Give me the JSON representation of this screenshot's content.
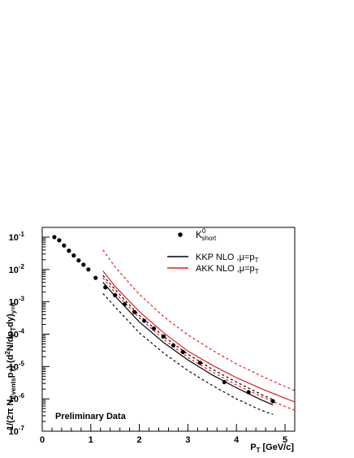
{
  "chart_data": {
    "type": "scatter",
    "title": "",
    "xlabel_main": "P",
    "xlabel_sub": "T",
    "xlabel_unit": " [GeV/c]",
    "ylabel_parts": {
      "a": "1/(2π N",
      "a_sub": "Events",
      "b": "p",
      "b_sub": "T",
      "c": ") (d",
      "c_sup": "2",
      "d": "N/dp",
      "d_sub": "T",
      "e": "dy)",
      "e_sub": "y=0"
    },
    "xlim": [
      0,
      5.2
    ],
    "ylim": [
      1e-07,
      0.2
    ],
    "yscale": "log",
    "x_ticks": [
      "0",
      "1",
      "2",
      "3",
      "4",
      "5"
    ],
    "y_ticks": [
      {
        "base": "10",
        "exp": "-7"
      },
      {
        "base": "10",
        "exp": "-6"
      },
      {
        "base": "10",
        "exp": "-5"
      },
      {
        "base": "10",
        "exp": "-4"
      },
      {
        "base": "10",
        "exp": "-3"
      },
      {
        "base": "10",
        "exp": "-2"
      },
      {
        "base": "10",
        "exp": "-1"
      }
    ],
    "legend": {
      "position": "top-right",
      "entries": [
        {
          "label": "K",
          "sup": "0",
          "sub": "short",
          "style": "marker",
          "color": "#000000"
        },
        {
          "label": "KKP NLO ,μ=p",
          "sub": "T",
          "style": "line",
          "color": "#000000"
        },
        {
          "label": "AKK NLO ,μ=p",
          "sub": "T",
          "style": "line",
          "color": "#e31a1c"
        }
      ]
    },
    "annotation": "Preliminary Data",
    "series": [
      {
        "name": "K0short",
        "kind": "points",
        "color": "#000000",
        "x": [
          0.25,
          0.35,
          0.45,
          0.55,
          0.65,
          0.75,
          0.85,
          0.95,
          1.1,
          1.3,
          1.5,
          1.7,
          1.9,
          2.1,
          2.3,
          2.5,
          2.7,
          2.9,
          3.25,
          3.75,
          4.25,
          4.75
        ],
        "y": [
          0.1,
          0.08,
          0.055,
          0.038,
          0.027,
          0.019,
          0.014,
          0.01,
          0.0055,
          0.0028,
          0.0016,
          0.00085,
          0.00048,
          0.00026,
          0.00015,
          8.5e-05,
          4.5e-05,
          2.8e-05,
          1.3e-05,
          3.3e-06,
          1.6e-06,
          8.5e-07
        ]
      },
      {
        "name": "KKP NLO",
        "kind": "line",
        "dash": "solid",
        "color": "#000000",
        "x": [
          1.25,
          1.5,
          2,
          2.5,
          3,
          3.5,
          4,
          4.5,
          4.75
        ],
        "y": [
          0.004,
          0.0015,
          0.00024,
          5.5e-05,
          1.6e-05,
          5.5e-06,
          2.2e-06,
          9.5e-07,
          6.5e-07
        ]
      },
      {
        "name": "KKP NLO (scale band upper)",
        "kind": "line",
        "dash": "dashed",
        "color": "#000000",
        "x": [
          1.25,
          1.5,
          2,
          2.5,
          3,
          3.5,
          4,
          4.5,
          4.75
        ],
        "y": [
          0.0065,
          0.0024,
          0.00038,
          8.5e-05,
          2.4e-05,
          8.3e-06,
          3.3e-06,
          1.4e-06,
          9.5e-07
        ]
      },
      {
        "name": "KKP NLO (scale band lower)",
        "kind": "line",
        "dash": "dashed",
        "color": "#000000",
        "x": [
          1.25,
          1.5,
          2,
          2.5,
          3,
          3.5,
          4,
          4.5,
          4.75
        ],
        "y": [
          0.0018,
          0.0007,
          0.00011,
          2.6e-05,
          7.5e-06,
          2.6e-06,
          1e-06,
          4.5e-07,
          3.3e-07
        ]
      },
      {
        "name": "AKK NLO",
        "kind": "line",
        "dash": "solid",
        "color": "#e31a1c",
        "x": [
          1.25,
          1.5,
          2,
          2.5,
          3,
          3.5,
          4,
          4.5,
          5,
          5.2
        ],
        "y": [
          0.009,
          0.003,
          0.0005,
          0.00011,
          3e-05,
          1.1e-05,
          4.5e-06,
          2.1e-06,
          1.05e-06,
          8e-07
        ]
      },
      {
        "name": "AKK NLO (scale band upper)",
        "kind": "line",
        "dash": "dashed",
        "color": "#e31a1c",
        "x": [
          1.25,
          1.5,
          2,
          2.5,
          3,
          3.5,
          4,
          4.5,
          5,
          5.2
        ],
        "y": [
          0.04,
          0.012,
          0.0017,
          0.00035,
          9.5e-05,
          3.2e-05,
          1.2e-05,
          5.2e-06,
          2.4e-06,
          1.8e-06
        ]
      },
      {
        "name": "AKK NLO (scale band lower)",
        "kind": "line",
        "dash": "dashed",
        "color": "#e31a1c",
        "x": [
          1.25,
          1.5,
          2,
          2.5,
          3,
          3.5,
          4,
          4.5,
          5,
          5.2
        ],
        "y": [
          0.0055,
          0.0019,
          0.00032,
          7e-05,
          1.9e-05,
          6.8e-06,
          2.7e-06,
          1.2e-06,
          5.8e-07,
          4.5e-07
        ]
      }
    ]
  }
}
